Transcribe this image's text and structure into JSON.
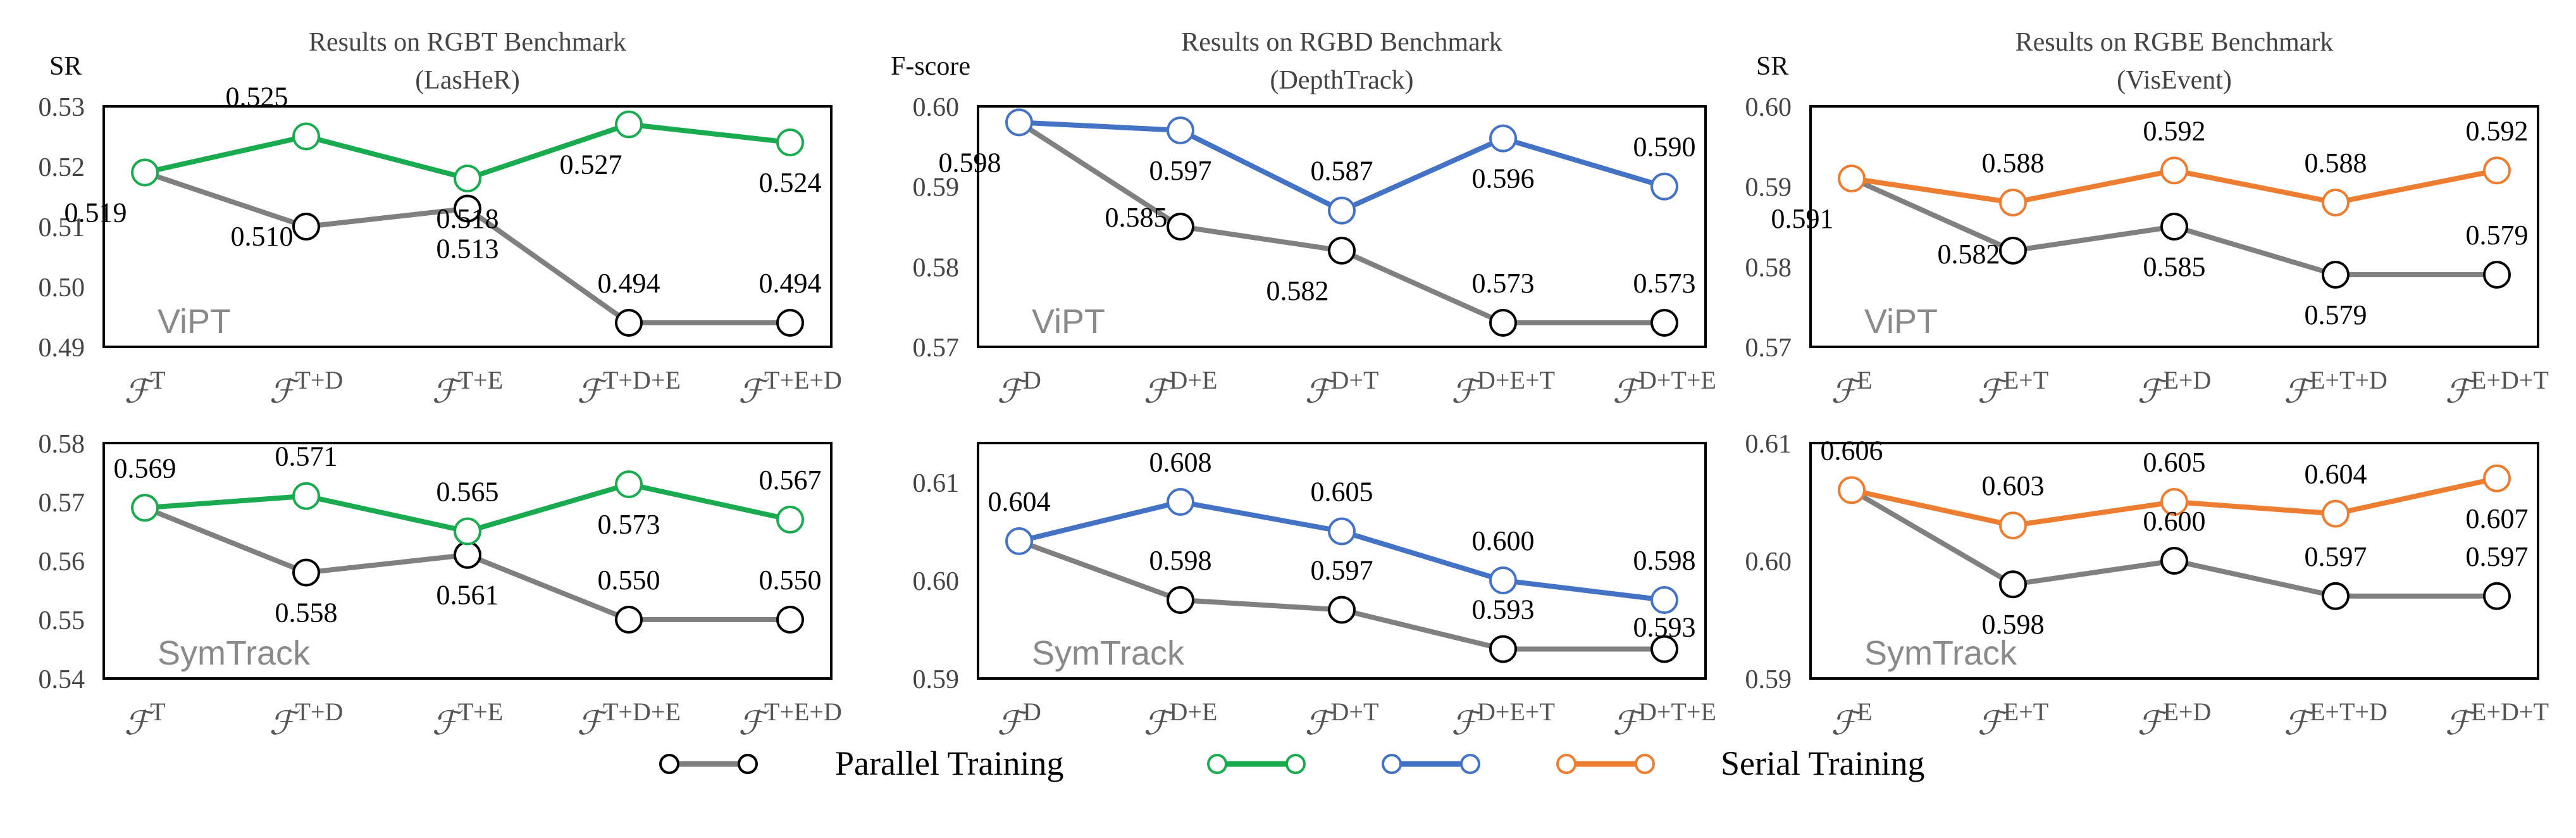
{
  "colors": {
    "parallel": "#808080",
    "rgbt": "#1aaa50",
    "rgbd": "#4472c4",
    "rgbe": "#ed7d31",
    "axis": "#000000"
  },
  "legend": {
    "parallel_label": "Parallel Training",
    "serial_label": "Serial Training"
  },
  "chart_data": [
    {
      "id": "rgbt-vipt",
      "type": "line",
      "title_line1": "Results on RGBT Benchmark",
      "title_line2": "(LasHeR)",
      "ylabel": "SR",
      "model": "ViPT",
      "categories": [
        [
          "T"
        ],
        [
          "T+D"
        ],
        [
          "T+E"
        ],
        [
          "T+D+E"
        ],
        [
          "T+E+D"
        ]
      ],
      "ylim": [
        0.49,
        0.53
      ],
      "yticks": [
        "0.53",
        "0.52",
        "0.51",
        "0.50",
        "0.49"
      ],
      "serial": [
        0.519,
        0.525,
        0.518,
        0.527,
        0.524
      ],
      "parallel": [
        0.519,
        0.51,
        0.513,
        0.494,
        0.494
      ],
      "serial_labels": [
        "0.519",
        "0.525",
        "0.518",
        "0.527",
        "0.524"
      ],
      "parallel_labels": [
        "",
        "0.510",
        "0.513",
        "0.494",
        "0.494"
      ],
      "color_key": "rgbt"
    },
    {
      "id": "rgbd-vipt",
      "type": "line",
      "title_line1": "Results on RGBD Benchmark",
      "title_line2": "(DepthTrack)",
      "ylabel": "F-score",
      "model": "ViPT",
      "categories": [
        [
          "D"
        ],
        [
          "D+E"
        ],
        [
          "D+T"
        ],
        [
          "D+E+T"
        ],
        [
          "D+T+E"
        ]
      ],
      "ylim": [
        0.57,
        0.6
      ],
      "yticks": [
        "0.60",
        "0.59",
        "0.58",
        "0.57"
      ],
      "serial": [
        0.598,
        0.597,
        0.587,
        0.596,
        0.59
      ],
      "parallel": [
        0.598,
        0.585,
        0.582,
        0.573,
        0.573
      ],
      "serial_labels": [
        "0.598",
        "0.597",
        "0.587",
        "0.596",
        "0.590"
      ],
      "parallel_labels": [
        "",
        "0.585",
        "0.582",
        "0.573",
        "0.573"
      ],
      "color_key": "rgbd"
    },
    {
      "id": "rgbe-vipt",
      "type": "line",
      "title_line1": "Results on RGBE Benchmark",
      "title_line2": "(VisEvent)",
      "ylabel": "SR",
      "model": "ViPT",
      "categories": [
        [
          "E"
        ],
        [
          "E+T"
        ],
        [
          "E+D"
        ],
        [
          "E+T+D"
        ],
        [
          "E+D+T"
        ]
      ],
      "ylim": [
        0.57,
        0.6
      ],
      "yticks": [
        "0.60",
        "0.59",
        "0.58",
        "0.57"
      ],
      "serial": [
        0.591,
        0.588,
        0.592,
        0.588,
        0.592
      ],
      "parallel": [
        0.591,
        0.582,
        0.585,
        0.579,
        0.579
      ],
      "serial_labels": [
        "0.591",
        "0.588",
        "0.592",
        "0.588",
        "0.592"
      ],
      "parallel_labels": [
        "",
        "0.582",
        "0.585",
        "0.579",
        "0.579"
      ],
      "color_key": "rgbe"
    },
    {
      "id": "rgbt-symtrack",
      "type": "line",
      "ylabel": "",
      "model": "SymTrack",
      "categories": [
        [
          "T"
        ],
        [
          "T+D"
        ],
        [
          "T+E"
        ],
        [
          "T+D+E"
        ],
        [
          "T+E+D"
        ]
      ],
      "ylim": [
        0.54,
        0.58
      ],
      "yticks": [
        "0.58",
        "0.57",
        "0.56",
        "0.55",
        "0.54"
      ],
      "serial": [
        0.569,
        0.571,
        0.565,
        0.573,
        0.567
      ],
      "parallel": [
        0.569,
        0.558,
        0.561,
        0.55,
        0.55
      ],
      "serial_labels": [
        "0.569",
        "0.571",
        "0.565",
        "0.573",
        "0.567"
      ],
      "parallel_labels": [
        "",
        "0.558",
        "0.561",
        "0.550",
        "0.550"
      ],
      "color_key": "rgbt"
    },
    {
      "id": "rgbd-symtrack",
      "type": "line",
      "ylabel": "",
      "model": "SymTrack",
      "categories": [
        [
          "D"
        ],
        [
          "D+E"
        ],
        [
          "D+T"
        ],
        [
          "D+E+T"
        ],
        [
          "D+T+E"
        ]
      ],
      "ylim": [
        0.59,
        0.614
      ],
      "yticks": [
        "0.61",
        "0.60",
        "0.59"
      ],
      "ytick_values": [
        0.61,
        0.6,
        0.59
      ],
      "serial": [
        0.604,
        0.608,
        0.605,
        0.6,
        0.598
      ],
      "parallel": [
        0.604,
        0.598,
        0.597,
        0.593,
        0.593
      ],
      "serial_labels": [
        "0.604",
        "0.608",
        "0.605",
        "0.600",
        "0.598"
      ],
      "parallel_labels": [
        "",
        "0.598",
        "0.597",
        "0.593",
        "0.593"
      ],
      "color_key": "rgbd"
    },
    {
      "id": "rgbe-symtrack",
      "type": "line",
      "ylabel": "",
      "model": "SymTrack",
      "categories": [
        [
          "E"
        ],
        [
          "E+T"
        ],
        [
          "E+D"
        ],
        [
          "E+T+D"
        ],
        [
          "E+D+T"
        ]
      ],
      "ylim": [
        0.59,
        0.61
      ],
      "yticks": [
        "0.61",
        "0.60",
        "0.59"
      ],
      "serial": [
        0.606,
        0.603,
        0.605,
        0.604,
        0.607
      ],
      "parallel": [
        0.606,
        0.598,
        0.6,
        0.597,
        0.597
      ],
      "serial_labels": [
        "0.606",
        "0.603",
        "0.605",
        "0.604",
        "0.607"
      ],
      "parallel_labels": [
        "",
        "0.598",
        "0.600",
        "0.597",
        "0.597"
      ],
      "color_key": "rgbe"
    }
  ]
}
